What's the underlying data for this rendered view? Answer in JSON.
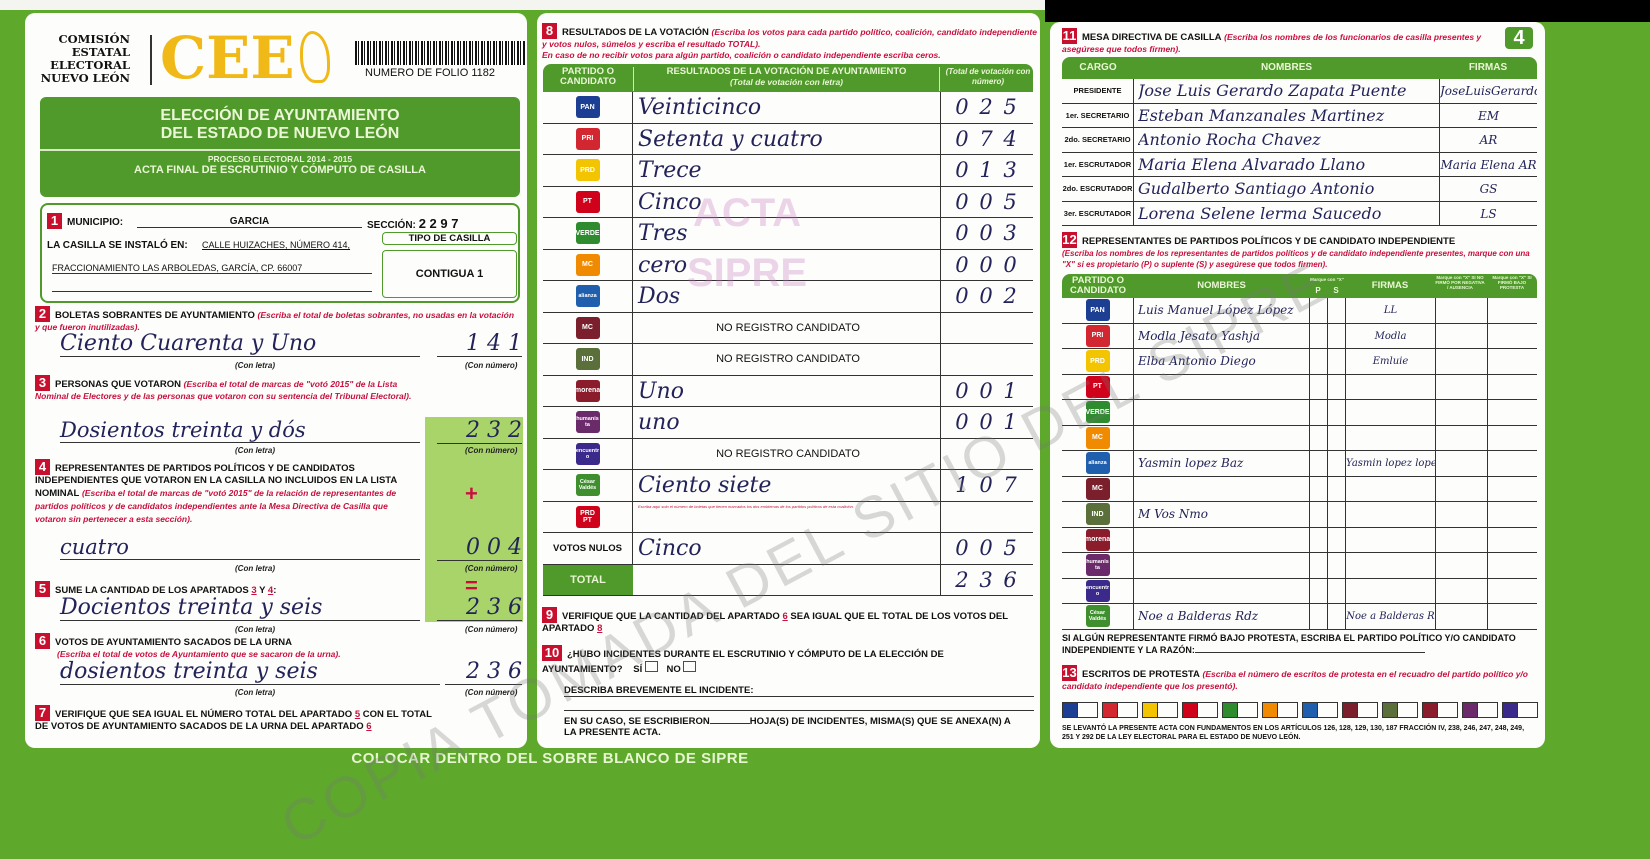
{
  "header": {
    "org": [
      "COMISIÓN",
      "ESTATAL",
      "ELECTORAL",
      "NUEVO LEÓN"
    ],
    "logo_text": "CEE",
    "folio": "NUMERO DE FOLIO 1182",
    "title_1": "ELECCIÓN DE AYUNTAMIENTO",
    "title_2": "DEL ESTADO DE NUEVO LEÓN",
    "process": "PROCESO ELECTORAL 2014 - 2015",
    "subtitle": "ACTA FINAL DE ESCRUTINIO Y CÓMPUTO DE CASILLA",
    "page_number": "4"
  },
  "s1": {
    "n": "1",
    "municipio_label": "MUNICIPIO:",
    "municipio": "GARCIA",
    "seccion_label": "SECCIÓN:",
    "seccion": "2 2 9 7",
    "instalo_label": "LA CASILLA SE INSTALÓ EN:",
    "address_1": "CALLE HUIZACHES, NÚMERO 414,",
    "address_2": "FRACCIONAMIENTO LAS ARBOLEDAS, GARCÍA, CP. 66007",
    "tipo_label": "TIPO DE CASILLA",
    "tipo": "CONTIGUA 1"
  },
  "labels": {
    "con_letra": "(Con letra)",
    "con_numero": "(Con número)",
    "plus": "+",
    "equals": "="
  },
  "s2": {
    "n": "2",
    "title": "BOLETAS SOBRANTES DE AYUNTAMIENTO",
    "note": "(Escriba el total de boletas sobrantes, no usadas en la votación y que fueron inutilizadas).",
    "words": "Ciento Cuarenta y Uno",
    "number": "1 4 1"
  },
  "s3": {
    "n": "3",
    "title": "PERSONAS QUE VOTARON",
    "note": "(Escriba el total de marcas de \"votó 2015\" de la Lista Nominal de Electores y de las personas que votaron con su sentencia del Tribunal Electoral).",
    "words": "Dosientos treinta y dós",
    "number": "2 3 2"
  },
  "s4": {
    "n": "4",
    "title": "REPRESENTANTES DE PARTIDOS POLÍTICOS Y DE CANDIDATOS INDEPENDIENTES QUE VOTARON EN LA CASILLA NO INCLUIDOS EN LA LISTA NOMINAL",
    "note": "(Escriba el total de marcas de \"votó 2015\" de la relación de representantes de partidos políticos y de candidatos independientes ante la Mesa Directiva de Casilla que votaron sin pertenecer a esta sección).",
    "words": "cuatro",
    "number": "0 0 4"
  },
  "s5": {
    "n": "5",
    "title": "SUME LA CANTIDAD DE LOS APARTADOS",
    "a": "3",
    "y": "Y",
    "b": "4",
    "colon": ":",
    "words": "Docientos treinta y seis",
    "number": "2 3 6"
  },
  "s6": {
    "n": "6",
    "title": "VOTOS DE AYUNTAMIENTO SACADOS DE LA URNA",
    "note": "(Escriba el total de votos de Ayuntamiento que se sacaron de la urna).",
    "words": "dosientos treinta y seis",
    "number": "2 3 6"
  },
  "s7": {
    "n": "7",
    "text_1": "VERIFIQUE QUE SEA IGUAL EL NÚMERO TOTAL DEL APARTADO",
    "ref_1": "5",
    "text_2": "CON EL TOTAL DE VOTOS DE AYUNTAMIENTO SACADOS DE LA URNA DEL APARTADO",
    "ref_2": "6"
  },
  "s8": {
    "n": "8",
    "title": "RESULTADOS DE LA VOTACIÓN",
    "note_1": "(Escriba los votos para cada partido político, coalición, candidato independiente y votos nulos, súmelos y escriba el resultado TOTAL).",
    "note_2": "En caso de no recibir votos para algún partido, coalición o candidato independiente escriba ceros.",
    "col_party": "PARTIDO O CANDIDATO",
    "col_words": "RESULTADOS DE LA VOTACIÓN DE AYUNTAMIENTO",
    "col_words_sub": "(Total de votación con letra)",
    "col_number": "(Total de votación con número)",
    "rows": [
      {
        "party": "PAN",
        "color": "#1c3f94",
        "words": "Veinticinco",
        "number": "0 2 5"
      },
      {
        "party": "PRI",
        "color": "#d22630",
        "words": "Setenta y cuatro",
        "number": "0 7 4"
      },
      {
        "party": "PRD",
        "color": "#f2c500",
        "words": "Trece",
        "number": "0 1 3"
      },
      {
        "party": "PT",
        "color": "#d0021b",
        "words": "Cinco",
        "number": "0 0 5"
      },
      {
        "party": "VERDE",
        "color": "#2e8b2e",
        "words": "Tres",
        "number": "0 0 3"
      },
      {
        "party": "MC",
        "color": "#f08a00",
        "words": "cero",
        "number": "0 0 0"
      },
      {
        "party": "alianza",
        "color": "#1f5fae",
        "words": "Dos",
        "number": "0 0 2"
      },
      {
        "party": "MC",
        "color": "#7a1f2b",
        "words": "NO REGISTRO CANDIDATO",
        "number": ""
      },
      {
        "party": "IND",
        "color": "#5a6f3a",
        "words": "NO REGISTRO CANDIDATO",
        "number": ""
      },
      {
        "party": "morena",
        "color": "#8a1c2b",
        "words": "Uno",
        "number": "0 0 1"
      },
      {
        "party": "humanista",
        "color": "#6b2a6a",
        "words": "uno",
        "number": "0 0 1"
      },
      {
        "party": "encuentro",
        "color": "#3b2a8c",
        "words": "NO REGISTRO CANDIDATO",
        "number": ""
      },
      {
        "party": "César Valdés",
        "color": "#3f8f2f",
        "words": "Ciento siete",
        "number": "1 0 7"
      },
      {
        "party": "PRD PT",
        "color": "#d0021b",
        "words": "",
        "note": "Escriba aquí solo el número de boletas que tienen marcados los dos emblemas de los partidos políticos de esta coalición.",
        "number": ""
      },
      {
        "party": "VOTOS NULOS",
        "color": "",
        "words": "Cinco",
        "number": "0 0 5"
      }
    ],
    "total_label": "TOTAL",
    "total": "2 3 6"
  },
  "s9": {
    "n": "9",
    "text_1": "VERIFIQUE QUE LA CANTIDAD DEL APARTADO",
    "ref_1": "6",
    "text_2": "SEA IGUAL QUE EL TOTAL DE LOS VOTOS DEL APARTADO",
    "ref_2": "8"
  },
  "s10": {
    "n": "10",
    "question": "¿HUBO INCIDENTES DURANTE EL ESCRUTINIO Y CÓMPUTO DE LA ELECCIÓN DE AYUNTAMIENTO?",
    "si": "SÍ",
    "no": "NO",
    "describe": "DESCRIBA BREVEMENTE EL INCIDENTE:",
    "hojas_1": "EN SU CASO, SE ESCRIBIERON",
    "hojas_2": "HOJA(S) DE INCIDENTES, MISMA(S) QUE SE ANEXA(N) A LA PRESENTE ACTA."
  },
  "s11": {
    "n": "11",
    "title": "MESA DIRECTIVA DE CASILLA",
    "note": "(Escriba los nombres de los funcionarios de casilla presentes y asegúrese que todos firmen).",
    "col_cargo": "CARGO",
    "col_nombres": "NOMBRES",
    "col_firmas": "FIRMAS",
    "rows": [
      {
        "cargo": "PRESIDENTE",
        "name": "Jose Luis Gerardo Zapata Puente",
        "firma": "JoseLuisGerardoZP"
      },
      {
        "cargo": "1er. SECRETARIO",
        "name": "Esteban Manzanales Martinez",
        "firma": "EM"
      },
      {
        "cargo": "2do. SECRETARIO",
        "name": "Antonio Rocha Chavez",
        "firma": "AR"
      },
      {
        "cargo": "1er. ESCRUTADOR",
        "name": "Maria Elena Alvarado Llano",
        "firma": "Maria Elena AR"
      },
      {
        "cargo": "2do. ESCRUTADOR",
        "name": "Gudalberto Santiago Antonio",
        "firma": "GS"
      },
      {
        "cargo": "3er. ESCRUTADOR",
        "name": "Lorena Selene lerma Saucedo",
        "firma": "LS"
      }
    ]
  },
  "s12": {
    "n": "12",
    "title": "REPRESENTANTES DE PARTIDOS POLÍTICOS Y DE CANDIDATO INDEPENDIENTE",
    "note": "(Escriba los nombres de los representantes de partidos políticos y de candidato independiente presentes, marque con una \"X\" si es propietario (P) o suplente (S) y asegúrese que todos firmen).",
    "col_party": "PARTIDO O CANDIDATO",
    "col_nombres": "NOMBRES",
    "col_marque": "Marque con \"X\"",
    "col_p": "P",
    "col_s": "S",
    "col_firmas": "FIRMAS",
    "col_negativa": "Marque con \"X\" SI NO FIRMÓ POR NEGATIVA / AUSENCIA",
    "col_protesta": "Marque con \"X\" SI FIRMÓ BAJO PROTESTA",
    "rows": [
      {
        "party": "PAN",
        "color": "#1c3f94",
        "name": "Luis Manuel López López",
        "firma": "LL"
      },
      {
        "party": "PRI",
        "color": "#d22630",
        "name": "Modla Jesato Yashja",
        "firma": "Modla"
      },
      {
        "party": "PRD",
        "color": "#f2c500",
        "name": "Elba Antonio Diego",
        "firma": "Emluie"
      },
      {
        "party": "PT",
        "color": "#d0021b",
        "name": "",
        "firma": ""
      },
      {
        "party": "VERDE",
        "color": "#2e8b2e",
        "name": "",
        "firma": ""
      },
      {
        "party": "MC",
        "color": "#f08a00",
        "name": "",
        "firma": ""
      },
      {
        "party": "alianza",
        "color": "#1f5fae",
        "name": "Yasmin lopez Baz",
        "firma": "Yasmin lopez lopez"
      },
      {
        "party": "MC",
        "color": "#7a1f2b",
        "name": "",
        "firma": ""
      },
      {
        "party": "IND",
        "color": "#5a6f3a",
        "name": "M  Vos  Nmo",
        "firma": ""
      },
      {
        "party": "morena",
        "color": "#8a1c2b",
        "name": "",
        "firma": ""
      },
      {
        "party": "humanista",
        "color": "#6b2a6a",
        "name": "",
        "firma": ""
      },
      {
        "party": "encuentro",
        "color": "#3b2a8c",
        "name": "",
        "firma": ""
      },
      {
        "party": "César Valdés",
        "color": "#3f8f2f",
        "name": "Noe a Balderas Rdz",
        "firma": "Noe a Balderas R"
      }
    ],
    "protest_note": "SI ALGÚN REPRESENTANTE FIRMÓ BAJO PROTESTA, ESCRIBA EL PARTIDO POLÍTICO Y/O CANDIDATO INDEPENDIENTE Y LA RAZÓN:"
  },
  "s13": {
    "n": "13",
    "title": "ESCRITOS DE PROTESTA",
    "note": "(Escriba el número de escritos de protesta en el recuadro del partido político y/o candidato independiente que los presentó).",
    "parties": [
      {
        "p": "PAN",
        "c": "#1c3f94"
      },
      {
        "p": "PRI",
        "c": "#d22630"
      },
      {
        "p": "PRD",
        "c": "#f2c500"
      },
      {
        "p": "PT",
        "c": "#d0021b"
      },
      {
        "p": "VERDE",
        "c": "#2e8b2e"
      },
      {
        "p": "MC",
        "c": "#f08a00"
      },
      {
        "p": "alianza",
        "c": "#1f5fae"
      },
      {
        "p": "MC",
        "c": "#7a1f2b"
      },
      {
        "p": "IND",
        "c": "#5a6f3a"
      },
      {
        "p": "morena",
        "c": "#8a1c2b"
      },
      {
        "p": "humanista",
        "c": "#6b2a6a"
      },
      {
        "p": "encuentro",
        "c": "#3b2a8c"
      }
    ],
    "legal": "SE LEVANTÓ LA PRESENTE ACTA CON FUNDAMENTOS EN LOS ARTÍCULOS 126, 128, 129, 130, 187 FRACCIÓN IV, 238, 246, 247, 248, 249, 251 Y 292 DE LA LEY ELECTORAL PARA EL ESTADO DE NUEVO LEÓN."
  },
  "footer": "COLOCAR DENTRO DEL SOBRE BLANCO DE SIPRE",
  "watermark": "COPIA TOMADA DEL SITIO DEL SIPRE",
  "stamp": [
    "ACTA",
    "SIPRE"
  ],
  "colors": {
    "frame": "#5ea92c",
    "header_green": "#4f9a2a",
    "accent_red": "#c8103e",
    "cee_yellow": "#f0b917",
    "ink": "#23235a"
  }
}
